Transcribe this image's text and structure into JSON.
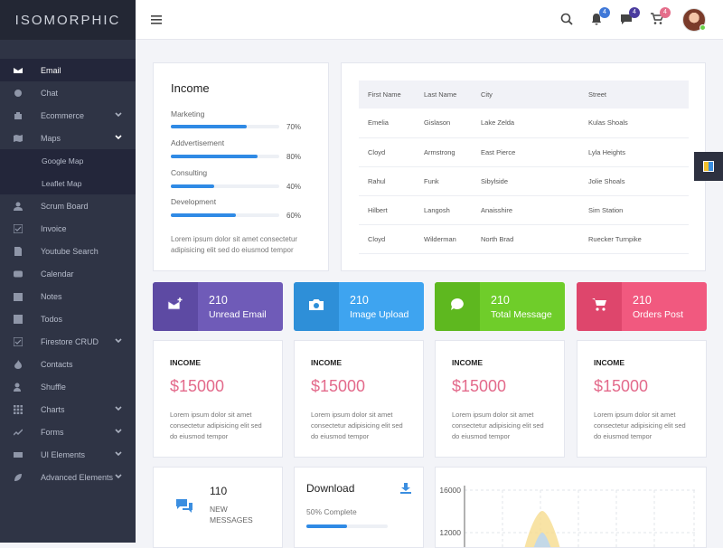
{
  "app": {
    "title": "ISOMORPHIC"
  },
  "sidebar": {
    "items": [
      {
        "label": "Email",
        "icon": "envelope-icon"
      },
      {
        "label": "Chat",
        "icon": "chat-icon"
      },
      {
        "label": "Ecommerce",
        "icon": "bag-icon"
      },
      {
        "label": "Maps",
        "icon": "map-icon"
      },
      {
        "label": "Scrum Board",
        "icon": "user-icon"
      },
      {
        "label": "Invoice",
        "icon": "check-square-icon"
      },
      {
        "label": "Youtube Search",
        "icon": "document-icon"
      },
      {
        "label": "Calendar",
        "icon": "youtube-icon"
      },
      {
        "label": "Notes",
        "icon": "calendar-icon"
      },
      {
        "label": "Todos",
        "icon": "note-icon"
      },
      {
        "label": "Firestore CRUD",
        "icon": "checkbox-icon"
      },
      {
        "label": "Contacts",
        "icon": "flame-icon"
      },
      {
        "label": "Shuffle",
        "icon": "contacts-icon"
      },
      {
        "label": "Charts",
        "icon": "grid-icon"
      },
      {
        "label": "Forms",
        "icon": "trending-icon"
      },
      {
        "label": "UI Elements",
        "icon": "envelope-icon"
      },
      {
        "label": "Advanced Elements",
        "icon": "leaf-icon"
      }
    ],
    "maps_sub": [
      "Google Map",
      "Leaflet Map"
    ]
  },
  "header": {
    "notif_badges": [
      "4",
      "4",
      "4"
    ],
    "badge_colors": [
      "#3f78d8",
      "#4b3c9e",
      "#e46d8a"
    ]
  },
  "income": {
    "title": "Income",
    "bars": [
      {
        "label": "Marketing",
        "pct": "70%",
        "value": 70
      },
      {
        "label": "Addvertisement",
        "pct": "80%",
        "value": 80
      },
      {
        "label": "Consulting",
        "pct": "40%",
        "value": 40
      },
      {
        "label": "Development",
        "pct": "60%",
        "value": 60
      }
    ],
    "text": "Lorem ipsum dolor sit amet consectetur adipisicing elit sed do eiusmod tempor"
  },
  "table": {
    "headers": [
      "First Name",
      "Last Name",
      "City",
      "Street"
    ],
    "rows": [
      [
        "Emelia",
        "Gislason",
        "Lake Zelda",
        "Kulas Shoals"
      ],
      [
        "Cloyd",
        "Armstrong",
        "East Pierce",
        "Lyla Heights"
      ],
      [
        "Rahul",
        "Funk",
        "Sibylside",
        "Jolie Shoals"
      ],
      [
        "Hilbert",
        "Langosh",
        "Anaisshire",
        "Sim Station"
      ],
      [
        "Cloyd",
        "Wilderman",
        "North Brad",
        "Ruecker Turnpike"
      ]
    ]
  },
  "stats": [
    {
      "num": "210",
      "label": "Unread Email",
      "color": "#6f5bb8",
      "dark": "#5d4aa3"
    },
    {
      "num": "210",
      "label": "Image Upload",
      "color": "#3ea4f0",
      "dark": "#2e8fd8"
    },
    {
      "num": "210",
      "label": "Total Message",
      "color": "#6fcd2a",
      "dark": "#5eb81f"
    },
    {
      "num": "210",
      "label": "Orders Post",
      "color": "#f1597f",
      "dark": "#de466c"
    }
  ],
  "income_cards": [
    {
      "title": "INCOME",
      "value": "$15000",
      "text": "Lorem ipsum dolor sit amet consectetur adipisicing elit sed do eiusmod tempor"
    },
    {
      "title": "INCOME",
      "value": "$15000",
      "text": "Lorem ipsum dolor sit amet consectetur adipisicing elit sed do eiusmod tempor"
    },
    {
      "title": "INCOME",
      "value": "$15000",
      "text": "Lorem ipsum dolor sit amet consectetur adipisicing elit sed do eiusmod tempor"
    },
    {
      "title": "INCOME",
      "value": "$15000",
      "text": "Lorem ipsum dolor sit amet consectetur adipisicing elit sed do eiusmod tempor"
    }
  ],
  "messages": {
    "count": "110",
    "label_line1": "NEW",
    "label_line2": "MESSAGES"
  },
  "download": {
    "title": "Download",
    "status": "50% Complete",
    "progress": 50
  },
  "chart": {
    "ticks": [
      "16000",
      "12000"
    ]
  }
}
